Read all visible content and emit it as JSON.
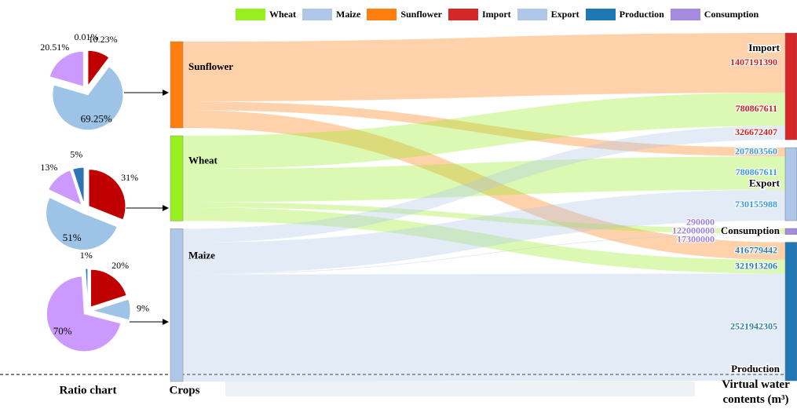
{
  "legend": [
    {
      "name": "Wheat",
      "color": "#99ee22"
    },
    {
      "name": "Maize",
      "color": "#aec7e8"
    },
    {
      "name": "Sunflower",
      "color": "#ff7f0e"
    },
    {
      "name": "Import",
      "color": "#d62728"
    },
    {
      "name": "Export",
      "color": "#aec7e8"
    },
    {
      "name": "Production",
      "color": "#1f77b4"
    },
    {
      "name": "Consumption",
      "color": "#a58be0"
    }
  ],
  "chart_data": [
    {
      "type": "pie",
      "values": [
        10.23,
        69.25,
        20.51,
        0.01
      ],
      "value_labels": [
        "10.23%",
        "69.25%",
        "20.51%",
        "0.01%"
      ],
      "colors": [
        "#c00000",
        "#9dc3e6",
        "#cc99ff",
        "#2e75b6"
      ]
    },
    {
      "type": "pie",
      "values": [
        31,
        51,
        13,
        5
      ],
      "value_labels": [
        "31%",
        "51%",
        "13%",
        "5%"
      ],
      "colors": [
        "#c00000",
        "#9dc3e6",
        "#cc99ff",
        "#2e75b6"
      ]
    },
    {
      "type": "pie",
      "values": [
        20,
        9,
        70,
        1
      ],
      "value_labels": [
        "20%",
        "9%",
        "70%",
        "1%"
      ],
      "colors": [
        "#c00000",
        "#9dc3e6",
        "#cc99ff",
        "#2e75b6"
      ]
    },
    {
      "type": "sankey",
      "pie_label": "Ratio chart",
      "source_label": "Crops",
      "target_label": "Virtual water contents (m³)",
      "categories": [
        "Import",
        "Export",
        "Consumption",
        "Production"
      ],
      "colors": [
        "#d62728",
        "#aec7e8",
        "#a58be0",
        "#1f77b4"
      ],
      "label_colors": [
        "#cc2020",
        "#3a9ad9",
        "#9b7fd4",
        "#2a7fb0"
      ],
      "series": [
        {
          "name": "Sunflower",
          "color": "#ff7f0e",
          "values": [
            1407191390,
            207803560,
            290000,
            416779442
          ]
        },
        {
          "name": "Wheat",
          "color": "#99ee22",
          "values": [
            780867611,
            780867611,
            122000000,
            321913206
          ]
        },
        {
          "name": "Maize",
          "color": "#aec7e8",
          "values": [
            326672407,
            730155988,
            17300000,
            2521942305
          ]
        }
      ]
    }
  ]
}
